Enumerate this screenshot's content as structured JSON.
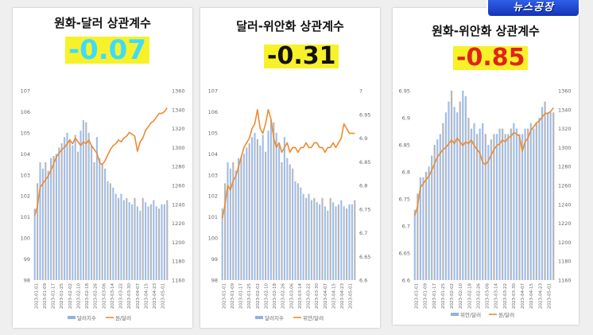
{
  "logo": {
    "text": "뉴스공장"
  },
  "colors": {
    "bar": "#8fb2e4",
    "bar_dark": "#a9a9a9",
    "line": "#ee8a30",
    "axis_text": "#666666",
    "cyan": "#3cdcff",
    "yellow": "#f7f12a",
    "red": "#e0231b"
  },
  "chart_data": [
    {
      "type": "bar+line",
      "title": "원화-달러 상관계수",
      "correlation": "-0.07",
      "highlight": "cyan",
      "legend": [
        {
          "label": "달러지수",
          "kind": "bar"
        },
        {
          "label": "원/달러",
          "kind": "line"
        }
      ],
      "x_ticks": [
        "2023-01-01",
        "2023-01-09",
        "2023-01-17",
        "2023-01-25",
        "2023-02-02",
        "2023-02-10",
        "2023-02-18",
        "2023-02-26",
        "2023-03-06",
        "2023-03-14",
        "2023-03-22",
        "2023-03-30",
        "2023-04-07",
        "2023-04-15",
        "2023-04-23",
        "2023-05-01"
      ],
      "y_left": {
        "ticks": [
          "98",
          "99",
          "100",
          "101",
          "102",
          "103",
          "104",
          "105",
          "106",
          "107"
        ],
        "range": [
          98,
          107
        ]
      },
      "y_right": {
        "ticks": [
          "1160",
          "1180",
          "1200",
          "1220",
          "1240",
          "1260",
          "1280",
          "1300",
          "1320",
          "1340",
          "1360"
        ],
        "range": [
          1160,
          1360
        ]
      },
      "bars": [
        101.4,
        102.6,
        103.6,
        103.3,
        103.6,
        103.2,
        103.8,
        103.9,
        104.0,
        104.3,
        104.5,
        104.8,
        105.0,
        104.7,
        104.4,
        104.9,
        104.1,
        105.1,
        105.6,
        105.5,
        105.0,
        104.4,
        103.6,
        104.8,
        103.8,
        103.5,
        103.3,
        102.7,
        102.6,
        102.4,
        102.1,
        101.9,
        102.1,
        101.8,
        101.9,
        101.7,
        101.6,
        101.9,
        101.5,
        101.3,
        101.9,
        101.7,
        101.5,
        101.6,
        101.8,
        101.5,
        101.4,
        101.6,
        101.6,
        101.8
      ],
      "line": [
        1228,
        1238,
        1258,
        1262,
        1266,
        1270,
        1276,
        1283,
        1290,
        1294,
        1298,
        1300,
        1304,
        1308,
        1304,
        1310,
        1306,
        1302,
        1306,
        1304,
        1308,
        1302,
        1298,
        1294,
        1284,
        1282,
        1286,
        1292,
        1298,
        1302,
        1304,
        1308,
        1306,
        1310,
        1312,
        1316,
        1314,
        1312,
        1296,
        1306,
        1310,
        1318,
        1322,
        1326,
        1328,
        1332,
        1336,
        1336,
        1338,
        1342
      ]
    },
    {
      "type": "bar+line",
      "title": "달러-위안화 상관계수",
      "correlation": "-0.31",
      "highlight": "yellow",
      "legend": [
        {
          "label": "달러지수",
          "kind": "bar"
        },
        {
          "label": "위안/달러",
          "kind": "line"
        }
      ],
      "x_ticks": [
        "2023-01-01",
        "2023-01-09",
        "2023-01-17",
        "2023-01-25",
        "2023-02-02",
        "2023-02-10",
        "2023-02-18",
        "2023-02-26",
        "2023-03-06",
        "2023-03-14",
        "2023-03-22",
        "2023-03-30",
        "2023-04-07",
        "2023-04-15",
        "2023-04-23",
        "2023-05-01"
      ],
      "y_left": {
        "ticks": [
          "98",
          "99",
          "100",
          "101",
          "102",
          "103",
          "104",
          "105",
          "106",
          "107"
        ],
        "range": [
          98,
          107
        ]
      },
      "y_right": {
        "ticks": [
          "6.6",
          "6.65",
          "6.7",
          "6.75",
          "6.8",
          "6.85",
          "6.9",
          "6.95",
          "7"
        ],
        "range": [
          6.6,
          7.0
        ]
      },
      "bars": [
        101.4,
        102.6,
        103.6,
        103.3,
        103.6,
        103.2,
        103.8,
        103.9,
        104.0,
        104.3,
        104.5,
        104.8,
        105.0,
        104.7,
        104.4,
        104.9,
        104.1,
        105.1,
        105.6,
        105.5,
        105.0,
        104.4,
        103.6,
        104.8,
        103.8,
        103.5,
        103.3,
        102.7,
        102.6,
        102.4,
        102.1,
        101.9,
        102.1,
        101.8,
        101.9,
        101.7,
        101.6,
        101.9,
        101.5,
        101.3,
        101.9,
        101.7,
        101.5,
        101.6,
        101.8,
        101.5,
        101.4,
        101.6,
        101.6,
        101.8
      ],
      "line": [
        6.73,
        6.76,
        6.8,
        6.79,
        6.81,
        6.82,
        6.84,
        6.86,
        6.88,
        6.89,
        6.9,
        6.92,
        6.93,
        6.96,
        6.92,
        6.91,
        6.93,
        6.96,
        6.94,
        6.9,
        6.88,
        6.89,
        6.87,
        6.88,
        6.89,
        6.87,
        6.88,
        6.88,
        6.87,
        6.88,
        6.88,
        6.89,
        6.88,
        6.88,
        6.89,
        6.89,
        6.88,
        6.88,
        6.87,
        6.88,
        6.88,
        6.89,
        6.88,
        6.89,
        6.9,
        6.93,
        6.92,
        6.91,
        6.91,
        6.91
      ]
    },
    {
      "type": "bar+line",
      "title": "원화-위안화 상관계수",
      "correlation": "-0.85",
      "highlight": "yellow_red",
      "legend": [
        {
          "label": "위안/달러",
          "kind": "bar"
        },
        {
          "label": "원/달러",
          "kind": "line"
        }
      ],
      "x_ticks": [
        "2023-01-01",
        "2023-01-09",
        "2023-01-17",
        "2023-01-25",
        "2023-02-02",
        "2023-02-10",
        "2023-02-18",
        "2023-02-26",
        "2023-03-06",
        "2023-03-14",
        "2023-03-22",
        "2023-03-30",
        "2023-04-07",
        "2023-04-15",
        "2023-04-23",
        "2023-05-01"
      ],
      "y_left": {
        "ticks": [
          "6.6",
          "6.65",
          "6.7",
          "6.75",
          "6.8",
          "6.85",
          "6.9",
          "6.95"
        ],
        "range": [
          6.6,
          6.95
        ]
      },
      "y_right": {
        "ticks": [
          "1160",
          "1180",
          "1200",
          "1220",
          "1240",
          "1260",
          "1280",
          "1300",
          "1320",
          "1340",
          "1360"
        ],
        "range": [
          1160,
          1360
        ]
      },
      "bars": [
        6.73,
        6.76,
        6.79,
        6.79,
        6.8,
        6.81,
        6.83,
        6.85,
        6.86,
        6.87,
        6.89,
        6.91,
        6.93,
        6.95,
        6.92,
        6.91,
        6.93,
        6.95,
        6.94,
        6.9,
        6.88,
        6.89,
        6.87,
        6.88,
        6.89,
        6.87,
        6.85,
        6.86,
        6.87,
        6.87,
        6.88,
        6.88,
        6.87,
        6.87,
        6.88,
        6.89,
        6.88,
        6.87,
        6.87,
        6.88,
        6.88,
        6.89,
        6.88,
        6.89,
        6.9,
        6.92,
        6.93,
        6.91,
        6.91,
        6.91
      ],
      "line": [
        1228,
        1238,
        1258,
        1262,
        1266,
        1270,
        1276,
        1283,
        1290,
        1294,
        1298,
        1300,
        1304,
        1308,
        1304,
        1310,
        1306,
        1302,
        1306,
        1304,
        1308,
        1302,
        1298,
        1294,
        1284,
        1282,
        1286,
        1292,
        1298,
        1302,
        1304,
        1308,
        1306,
        1310,
        1312,
        1316,
        1314,
        1312,
        1296,
        1306,
        1310,
        1318,
        1322,
        1326,
        1328,
        1332,
        1336,
        1336,
        1338,
        1342
      ]
    }
  ]
}
